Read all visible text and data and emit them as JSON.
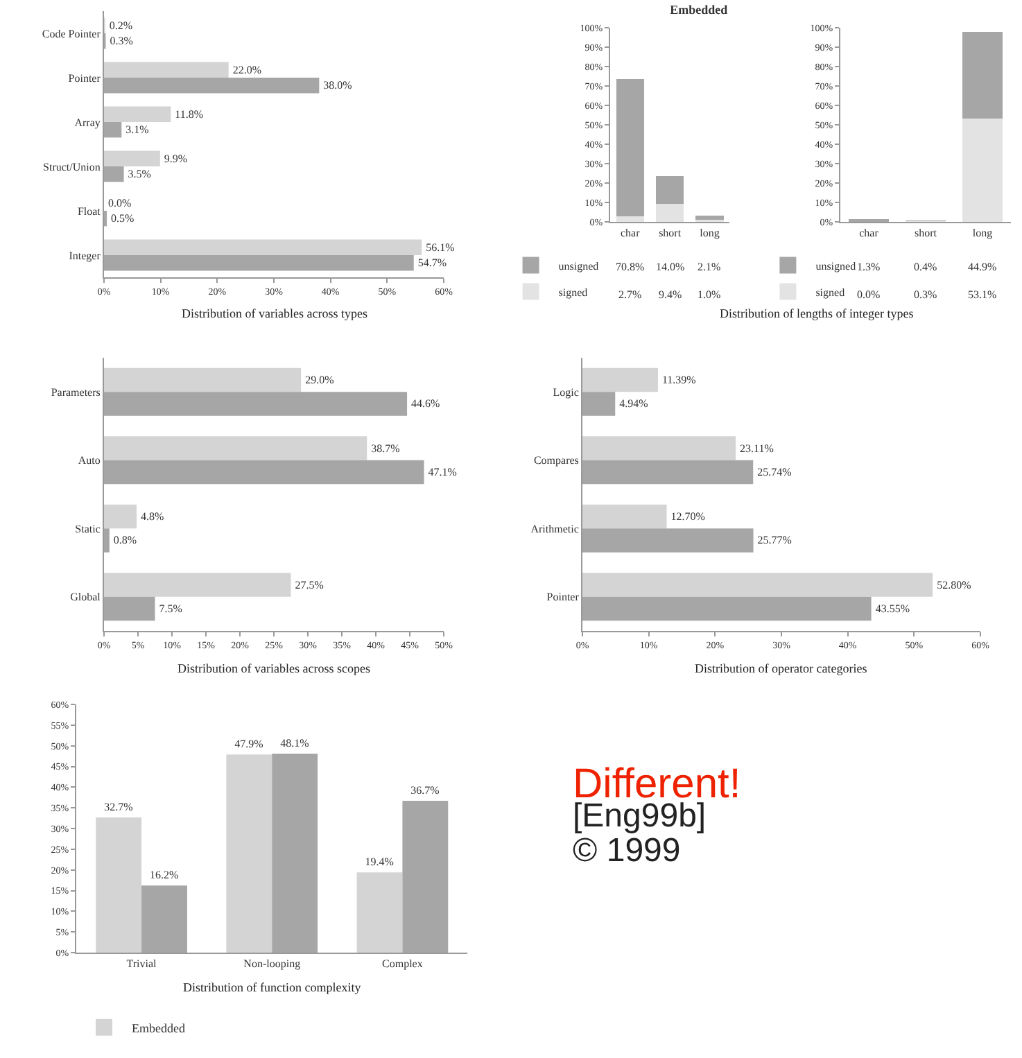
{
  "chart_data": [
    {
      "type": "bar",
      "orientation": "horizontal",
      "xlabel": "Distribution of variables across types",
      "categories": [
        "Code Pointer",
        "Pointer",
        "Array",
        "Struct/Union",
        "Float",
        "Integer"
      ],
      "series": [
        {
          "color": "#d4d4d4",
          "values": [
            0.2,
            22.0,
            11.8,
            9.9,
            0.0,
            56.1
          ],
          "value_labels": [
            "0.2%",
            "22.0%",
            "11.8%",
            "9.9%",
            "0.0%",
            "56.1%"
          ]
        },
        {
          "color": "#a6a6a6",
          "values": [
            0.3,
            38.0,
            3.1,
            3.5,
            0.5,
            54.7
          ],
          "value_labels": [
            "0.3%",
            "38.0%",
            "3.1%",
            "3.5%",
            "0.5%",
            "54.7%"
          ]
        }
      ],
      "xlim": [
        0,
        60
      ],
      "xticks": [
        {
          "value": 0,
          "label": "0%"
        },
        {
          "value": 10,
          "label": "10%"
        },
        {
          "value": 20,
          "label": "20%"
        },
        {
          "value": 30,
          "label": "30%"
        },
        {
          "value": 40,
          "label": "40%"
        },
        {
          "value": 50,
          "label": "50%"
        },
        {
          "value": 60,
          "label": "60%"
        }
      ]
    },
    {
      "type": "bar",
      "stacked": true,
      "legend": "bottom left",
      "title": "Embedded",
      "xlabel": "Distribution of lengths of integer types",
      "categories": [
        "char",
        "short",
        "long"
      ],
      "series": [
        {
          "name": "signed",
          "color": "#e3e3e3",
          "values": [
            2.7,
            9.4,
            1.0
          ],
          "value_labels": [
            "2.7%",
            "9.4%",
            "1.0%"
          ]
        },
        {
          "name": "unsigned",
          "color": "#a6a6a6",
          "values": [
            70.8,
            14.0,
            2.1
          ],
          "value_labels": [
            "70.8%",
            "14.0%",
            "2.1%"
          ]
        }
      ],
      "ylim": [
        0,
        100
      ],
      "yticks": [
        {
          "value": 0,
          "label": "0%"
        },
        {
          "value": 10,
          "label": "10%"
        },
        {
          "value": 20,
          "label": "20%"
        },
        {
          "value": 30,
          "label": "30%"
        },
        {
          "value": 40,
          "label": "40%"
        },
        {
          "value": 50,
          "label": "50%"
        },
        {
          "value": 60,
          "label": "60%"
        },
        {
          "value": 70,
          "label": "70%"
        },
        {
          "value": 80,
          "label": "80%"
        },
        {
          "value": 90,
          "label": "90%"
        },
        {
          "value": 100,
          "label": "100%"
        }
      ]
    },
    {
      "type": "bar",
      "stacked": true,
      "legend": "bottom left",
      "categories": [
        "char",
        "short",
        "long"
      ],
      "series": [
        {
          "name": "signed",
          "color": "#e3e3e3",
          "values": [
            0.0,
            0.3,
            53.1
          ],
          "value_labels": [
            "0.0%",
            "0.3%",
            "53.1%"
          ]
        },
        {
          "name": "unsigned",
          "color": "#a6a6a6",
          "values": [
            1.3,
            0.4,
            44.9
          ],
          "value_labels": [
            "1.3%",
            "0.4%",
            "44.9%"
          ]
        }
      ],
      "ylim": [
        0,
        100
      ],
      "yticks": [
        {
          "value": 0,
          "label": "0%"
        },
        {
          "value": 10,
          "label": "10%"
        },
        {
          "value": 20,
          "label": "20%"
        },
        {
          "value": 30,
          "label": "30%"
        },
        {
          "value": 40,
          "label": "40%"
        },
        {
          "value": 50,
          "label": "50%"
        },
        {
          "value": 60,
          "label": "60%"
        },
        {
          "value": 70,
          "label": "70%"
        },
        {
          "value": 80,
          "label": "80%"
        },
        {
          "value": 90,
          "label": "90%"
        },
        {
          "value": 100,
          "label": "100%"
        }
      ]
    },
    {
      "type": "bar",
      "orientation": "horizontal",
      "xlabel": "Distribution of variables across scopes",
      "categories": [
        "Parameters",
        "Auto",
        "Static",
        "Global"
      ],
      "series": [
        {
          "color": "#d4d4d4",
          "values": [
            29.0,
            38.7,
            4.8,
            27.5
          ],
          "value_labels": [
            "29.0%",
            "38.7%",
            "4.8%",
            "27.5%"
          ]
        },
        {
          "color": "#a6a6a6",
          "values": [
            44.6,
            47.1,
            0.8,
            7.5
          ],
          "value_labels": [
            "44.6%",
            "47.1%",
            "0.8%",
            "7.5%"
          ]
        }
      ],
      "xlim": [
        0,
        50
      ],
      "xticks": [
        {
          "value": 0,
          "label": "0%"
        },
        {
          "value": 5,
          "label": "5%"
        },
        {
          "value": 10,
          "label": "10%"
        },
        {
          "value": 15,
          "label": "15%"
        },
        {
          "value": 20,
          "label": "20%"
        },
        {
          "value": 25,
          "label": "25%"
        },
        {
          "value": 30,
          "label": "30%"
        },
        {
          "value": 35,
          "label": "35%"
        },
        {
          "value": 40,
          "label": "40%"
        },
        {
          "value": 45,
          "label": "45%"
        },
        {
          "value": 50,
          "label": "50%"
        }
      ]
    },
    {
      "type": "bar",
      "orientation": "horizontal",
      "xlabel": "Distribution of operator categories",
      "categories": [
        "Logic",
        "Compares",
        "Arithmetic",
        "Pointer"
      ],
      "series": [
        {
          "color": "#d4d4d4",
          "values": [
            11.39,
            23.11,
            12.7,
            52.8
          ],
          "value_labels": [
            "11.39%",
            "23.11%",
            "12.70%",
            "52.80%"
          ]
        },
        {
          "color": "#a6a6a6",
          "values": [
            4.94,
            25.74,
            25.77,
            43.55
          ],
          "value_labels": [
            "4.94%",
            "25.74%",
            "25.77%",
            "43.55%"
          ]
        }
      ],
      "xlim": [
        0,
        60
      ],
      "xticks": [
        {
          "value": 0,
          "label": "0%"
        },
        {
          "value": 10,
          "label": "10%"
        },
        {
          "value": 20,
          "label": "20%"
        },
        {
          "value": 30,
          "label": "30%"
        },
        {
          "value": 40,
          "label": "40%"
        },
        {
          "value": 50,
          "label": "50%"
        },
        {
          "value": 60,
          "label": "60%"
        }
      ]
    },
    {
      "type": "bar",
      "xlabel": "Distribution of function complexity",
      "categories": [
        "Trivial",
        "Non-looping",
        "Complex"
      ],
      "legend": "bottom",
      "series": [
        {
          "name": "Embedded",
          "color": "#d4d4d4",
          "values": [
            32.7,
            47.9,
            19.4
          ],
          "value_labels": [
            "32.7%",
            "47.9%",
            "19.4%"
          ]
        },
        {
          "color": "#a6a6a6",
          "values": [
            16.2,
            48.1,
            36.7
          ],
          "value_labels": [
            "16.2%",
            "48.1%",
            "36.7%"
          ]
        }
      ],
      "ylim": [
        0,
        60
      ],
      "yticks": [
        {
          "value": 0,
          "label": "0%"
        },
        {
          "value": 5,
          "label": "5%"
        },
        {
          "value": 10,
          "label": "10%"
        },
        {
          "value": 15,
          "label": "15%"
        },
        {
          "value": 20,
          "label": "20%"
        },
        {
          "value": 25,
          "label": "25%"
        },
        {
          "value": 30,
          "label": "30%"
        },
        {
          "value": 35,
          "label": "35%"
        },
        {
          "value": 40,
          "label": "40%"
        },
        {
          "value": 45,
          "label": "45%"
        },
        {
          "value": 50,
          "label": "50%"
        },
        {
          "value": 55,
          "label": "55%"
        },
        {
          "value": 60,
          "label": "60%"
        }
      ],
      "annotations": [
        "Different!",
        "[Eng99b]",
        "© 1999"
      ]
    }
  ]
}
